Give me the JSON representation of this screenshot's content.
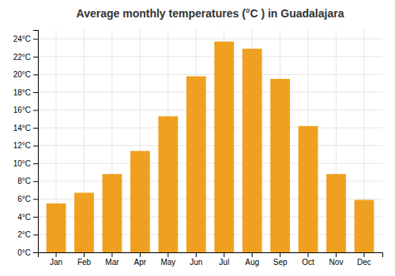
{
  "chart_data": {
    "type": "bar",
    "title": "Average monthly temperatures (°C ) in Guadalajara",
    "categories": [
      "Jan",
      "Feb",
      "Mar",
      "Apr",
      "May",
      "Jun",
      "Jul",
      "Aug",
      "Sep",
      "Oct",
      "Nov",
      "Dec"
    ],
    "values": [
      5.5,
      6.7,
      8.8,
      11.4,
      15.3,
      19.8,
      23.7,
      22.9,
      19.5,
      14.2,
      8.8,
      5.9
    ],
    "color": "#F0A020",
    "ylim": [
      0,
      25
    ],
    "yticks": [
      {
        "value": 0,
        "label": "0°C"
      },
      {
        "value": 2,
        "label": "2°C"
      },
      {
        "value": 4,
        "label": "4°C"
      },
      {
        "value": 6,
        "label": "6°C"
      },
      {
        "value": 8,
        "label": "8°C"
      },
      {
        "value": 10,
        "label": "10°C"
      },
      {
        "value": 12,
        "label": "12°C"
      },
      {
        "value": 14,
        "label": "14°C"
      },
      {
        "value": 16,
        "label": "16°C"
      },
      {
        "value": 18,
        "label": "18°C"
      },
      {
        "value": 20,
        "label": "20°C"
      },
      {
        "value": 22,
        "label": "22°C"
      },
      {
        "value": 24,
        "label": "24°C"
      }
    ],
    "grid": true
  }
}
